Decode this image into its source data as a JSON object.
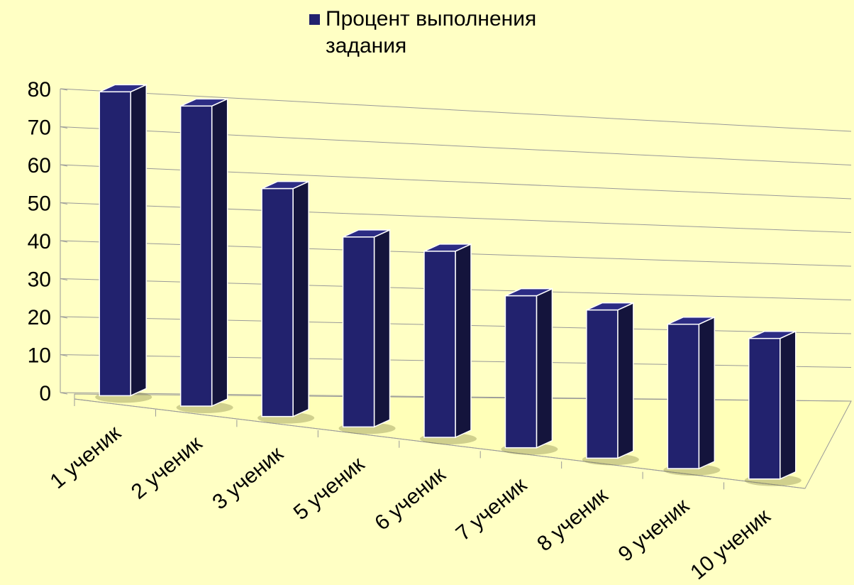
{
  "chart_data": {
    "type": "bar3d",
    "categories": [
      "1 ученик",
      "2 ученик",
      "3 ученик",
      "5 ученик",
      "6 ученик",
      "7 ученик",
      "8 ученик",
      "9 ученик",
      "10 ученик"
    ],
    "series": [
      {
        "name": "Процент выполнения задания",
        "color": "#22226e",
        "values": [
          80,
          79,
          60,
          50,
          49,
          40,
          39,
          38,
          37
        ]
      }
    ],
    "ylim": [
      0,
      80
    ],
    "yticks": [
      0,
      10,
      20,
      30,
      40,
      50,
      60,
      70,
      80
    ],
    "grid": true,
    "legend": "top"
  }
}
